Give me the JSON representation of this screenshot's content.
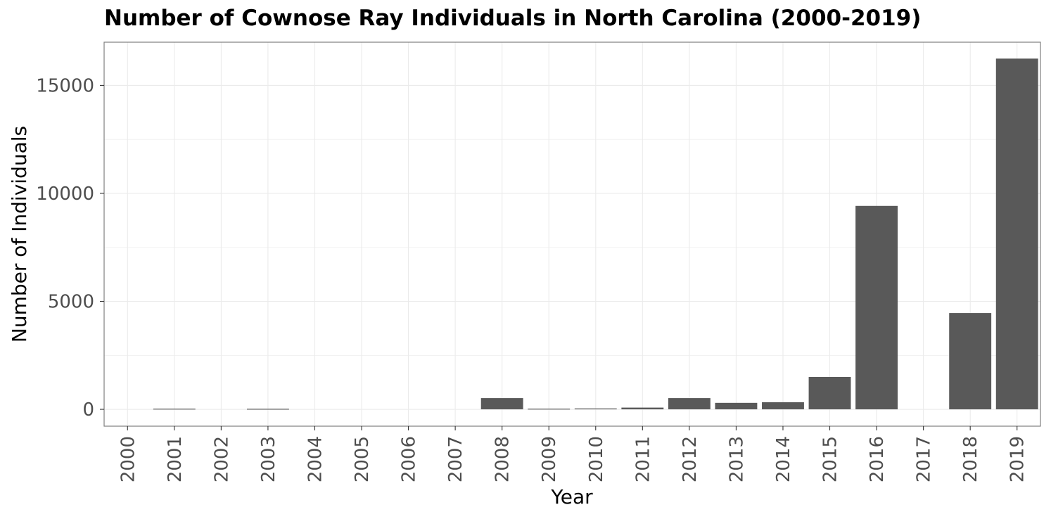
{
  "chart_data": {
    "type": "bar",
    "title": "Number of Cownose Ray Individuals in North Carolina (2000-2019)",
    "xlabel": "Year",
    "ylabel": "Number of Individuals",
    "categories": [
      "2000",
      "2001",
      "2002",
      "2003",
      "2004",
      "2005",
      "2006",
      "2007",
      "2008",
      "2009",
      "2010",
      "2011",
      "2012",
      "2013",
      "2014",
      "2015",
      "2016",
      "2017",
      "2018",
      "2019"
    ],
    "values": [
      0,
      30,
      0,
      25,
      0,
      0,
      0,
      0,
      520,
      30,
      40,
      80,
      520,
      300,
      330,
      1500,
      9420,
      0,
      4460,
      16240
    ],
    "yticks": [
      0,
      5000,
      10000,
      15000
    ],
    "ylim": [
      -780,
      17000
    ],
    "grid": true,
    "colors": {
      "bar": "#595959",
      "grid": "#ebebeb",
      "panel_border": "#7f7f7f"
    }
  }
}
